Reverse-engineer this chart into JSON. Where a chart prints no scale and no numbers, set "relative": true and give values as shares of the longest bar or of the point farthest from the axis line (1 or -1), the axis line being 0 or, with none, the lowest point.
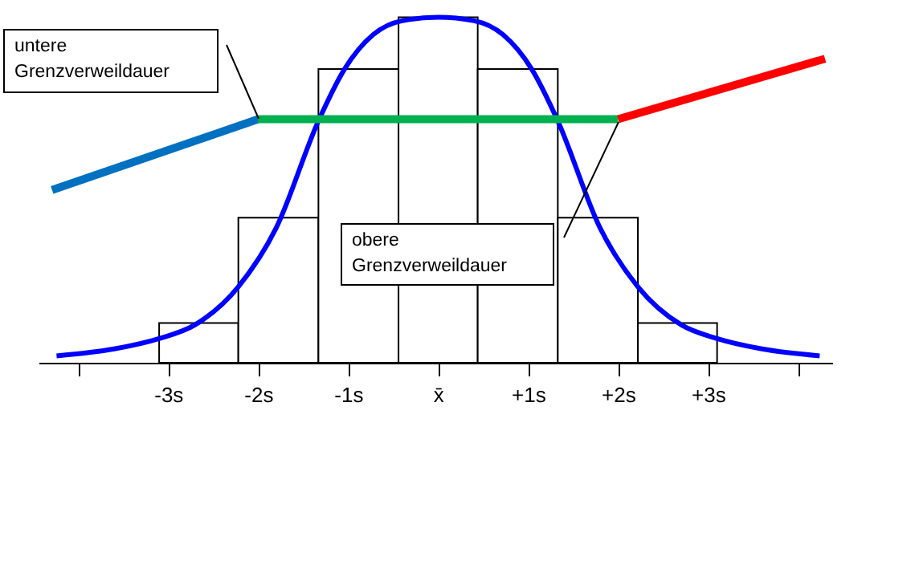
{
  "chart_data": {
    "type": "histogram",
    "relative": true,
    "color": "#ffffff",
    "bins": [
      -3.1,
      -2.22,
      -1.33,
      -0.44,
      0.44,
      1.33,
      2.22,
      3.1
    ],
    "values": [
      0.115,
      0.42,
      0.85,
      1,
      0.85,
      0.42,
      0.115
    ],
    "xlim": [
      -4.44,
      4.38
    ],
    "xticks": [
      {
        "value": -4,
        "label": null
      },
      {
        "value": -3,
        "label": "-3s"
      },
      {
        "value": -2,
        "label": "-2s"
      },
      {
        "value": -1,
        "label": "-1s"
      },
      {
        "value": 0,
        "label": "x̄"
      },
      {
        "value": 1,
        "label": "+1s"
      },
      {
        "value": 2,
        "label": "+2s"
      },
      {
        "value": 3,
        "label": "+3s"
      },
      {
        "value": 4,
        "label": null
      }
    ],
    "series": [
      {
        "type": "line",
        "color": "#0000ff",
        "x": [
          -4.24,
          -3.6,
          -3.1,
          -2.7,
          -2.22,
          -1.8,
          -1.33,
          -1.04,
          -0.72,
          -0.4,
          0,
          0.4,
          0.72,
          1.04,
          1.33,
          1.8,
          2.22,
          2.7,
          3.1,
          3.6,
          4.24
        ],
        "values": [
          0.02,
          0.04,
          0.07,
          0.11,
          0.22,
          0.39,
          0.7,
          0.85,
          0.95,
          0.99,
          1,
          0.99,
          0.95,
          0.85,
          0.7,
          0.39,
          0.22,
          0.11,
          0.07,
          0.04,
          0.02
        ]
      },
      {
        "type": "line",
        "color": "#0070c0",
        "x": [
          -4.29,
          -2
        ],
        "values": [
          0.5,
          0.705
        ]
      },
      {
        "type": "line",
        "color": "#00b050",
        "x": [
          -2,
          2
        ],
        "values": [
          0.705,
          0.705
        ]
      },
      {
        "type": "line",
        "color": "#ff0000",
        "x": [
          2,
          4.3
        ],
        "values": [
          0.705,
          0.88
        ]
      }
    ],
    "annotations": [
      "untere Grenzverweildauer",
      "obere Grenzverweildauer"
    ]
  }
}
